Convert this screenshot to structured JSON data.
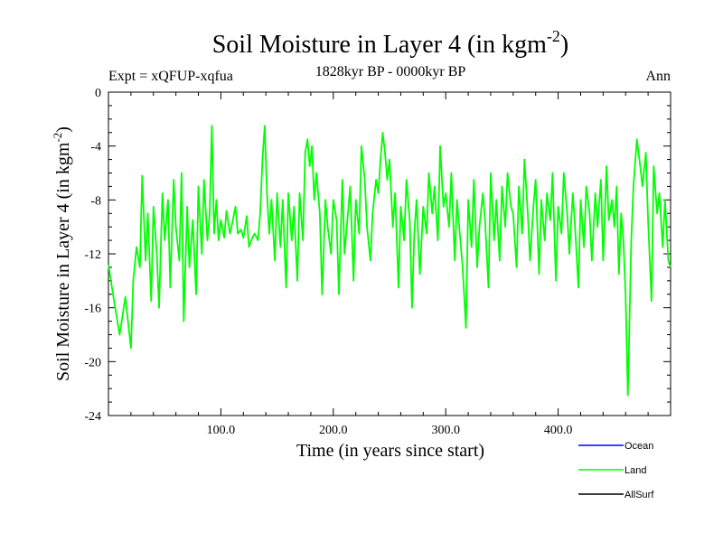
{
  "chart_data": {
    "type": "line",
    "title": "Soil Moisture in Layer 4 (in kgm",
    "title_superscript": "-2",
    "title_close": ")",
    "experiment_label": "Expt = xQFUP-xqfua",
    "period_label": "1828kyr BP - 0000kyr BP",
    "season_label": "Ann",
    "xlabel": "Time (in years since start)",
    "ylabel": "Soil Moisture in Layer 4 (in kgm",
    "ylabel_superscript": "-2",
    "ylabel_close": ")",
    "xlim": [
      0,
      500
    ],
    "ylim": [
      -24,
      0
    ],
    "x_ticks": [
      100,
      200,
      300,
      400
    ],
    "x_tick_labels": [
      "100.0",
      "200.0",
      "300.0",
      "400.0"
    ],
    "y_ticks": [
      0,
      -4,
      -8,
      -12,
      -16,
      -20,
      -24
    ],
    "y_tick_labels": [
      "0",
      "-4",
      "-8",
      "-12",
      "-16",
      "-20",
      "-24"
    ],
    "legend": [
      {
        "name": "Ocean",
        "color": "#0000ff"
      },
      {
        "name": "Land",
        "color": "#00ff00"
      },
      {
        "name": "AllSurf",
        "color": "#000000"
      }
    ],
    "series": [
      {
        "name": "Land",
        "color": "#00ff00",
        "x": [
          0,
          5,
          10,
          15,
          20,
          22,
          25,
          28,
          30,
          33,
          35,
          38,
          40,
          43,
          45,
          48,
          50,
          53,
          55,
          58,
          60,
          63,
          65,
          67,
          70,
          72,
          75,
          78,
          80,
          83,
          85,
          88,
          90,
          92,
          94,
          96,
          98,
          100,
          103,
          105,
          108,
          110,
          113,
          115,
          118,
          120,
          123,
          125,
          128,
          130,
          133,
          135,
          137,
          139,
          141,
          143,
          145,
          148,
          150,
          153,
          155,
          158,
          160,
          163,
          165,
          168,
          170,
          173,
          175,
          177,
          179,
          181,
          183,
          185,
          188,
          190,
          193,
          195,
          198,
          200,
          203,
          205,
          208,
          210,
          213,
          215,
          218,
          220,
          223,
          225,
          228,
          230,
          233,
          235,
          238,
          240,
          242,
          244,
          246,
          248,
          250,
          253,
          255,
          258,
          260,
          263,
          265,
          268,
          270,
          272,
          274,
          277,
          280,
          283,
          285,
          288,
          290,
          293,
          295,
          298,
          300,
          303,
          305,
          308,
          310,
          313,
          315,
          318,
          320,
          323,
          325,
          328,
          330,
          333,
          335,
          338,
          340,
          343,
          345,
          348,
          350,
          353,
          355,
          358,
          360,
          363,
          365,
          368,
          370,
          373,
          375,
          378,
          380,
          383,
          385,
          388,
          390,
          393,
          395,
          398,
          400,
          403,
          405,
          408,
          410,
          413,
          415,
          418,
          420,
          423,
          425,
          428,
          430,
          433,
          435,
          438,
          440,
          443,
          445,
          448,
          450,
          452,
          454,
          456,
          458,
          460,
          462,
          465,
          467,
          470,
          473,
          475,
          478,
          480,
          483,
          485,
          488,
          490,
          493,
          495,
          498,
          500
        ],
        "values": [
          -12.8,
          -15.5,
          -18.0,
          -15.2,
          -19.0,
          -14.0,
          -11.5,
          -13.0,
          -6.2,
          -12.5,
          -9.0,
          -15.5,
          -8.5,
          -12.0,
          -16.0,
          -7.5,
          -11.0,
          -8.0,
          -14.5,
          -6.5,
          -10.0,
          -12.5,
          -6.0,
          -17.0,
          -8.5,
          -13.0,
          -9.5,
          -15.0,
          -7.0,
          -12.0,
          -6.5,
          -11.0,
          -9.0,
          -2.5,
          -10.5,
          -8.0,
          -11.0,
          -9.5,
          -10.8,
          -8.8,
          -10.5,
          -9.8,
          -8.5,
          -10.5,
          -10.2,
          -10.8,
          -9.2,
          -11.5,
          -10.8,
          -10.5,
          -11.0,
          -9.0,
          -5.0,
          -2.5,
          -7.5,
          -10.5,
          -8.0,
          -12.5,
          -7.5,
          -11.5,
          -8.0,
          -14.5,
          -7.5,
          -11.0,
          -8.5,
          -14.0,
          -7.5,
          -11.0,
          -4.5,
          -3.5,
          -5.5,
          -4.0,
          -8.0,
          -6.0,
          -9.0,
          -15.0,
          -8.0,
          -10.0,
          -12.0,
          -8.0,
          -9.5,
          -15.0,
          -6.5,
          -12.0,
          -9.0,
          -7.0,
          -14.0,
          -8.0,
          -10.5,
          -4.0,
          -6.5,
          -10.0,
          -12.5,
          -9.0,
          -6.5,
          -7.5,
          -5.0,
          -3.0,
          -4.5,
          -6.5,
          -5.0,
          -10.0,
          -7.5,
          -14.5,
          -8.5,
          -11.0,
          -6.5,
          -9.5,
          -16.0,
          -10.5,
          -8.0,
          -13.5,
          -8.5,
          -10.5,
          -6.0,
          -9.0,
          -7.0,
          -11.0,
          -4.0,
          -8.5,
          -7.5,
          -10.0,
          -6.0,
          -12.5,
          -8.0,
          -11.0,
          -13.0,
          -17.5,
          -8.0,
          -11.5,
          -6.5,
          -13.0,
          -10.0,
          -7.5,
          -9.5,
          -14.5,
          -6.0,
          -11.0,
          -8.0,
          -12.5,
          -7.0,
          -10.0,
          -6.0,
          -8.5,
          -9.0,
          -13.0,
          -7.0,
          -10.5,
          -5.0,
          -9.0,
          -12.5,
          -8.5,
          -6.5,
          -13.5,
          -8.0,
          -11.0,
          -7.5,
          -9.5,
          -6.0,
          -14.0,
          -8.5,
          -10.5,
          -6.0,
          -9.0,
          -12.0,
          -7.5,
          -10.0,
          -14.5,
          -8.0,
          -11.5,
          -7.0,
          -9.0,
          -12.5,
          -7.5,
          -10.0,
          -6.5,
          -12.5,
          -5.5,
          -9.5,
          -8.0,
          -10.0,
          -7.0,
          -13.5,
          -9.0,
          -11.0,
          -15.0,
          -22.5,
          -11.0,
          -7.0,
          -3.5,
          -5.5,
          -7.0,
          -4.5,
          -9.5,
          -15.5,
          -5.5,
          -9.0,
          -7.5,
          -11.5,
          -8.0,
          -12.5,
          -13.0
        ]
      }
    ]
  }
}
